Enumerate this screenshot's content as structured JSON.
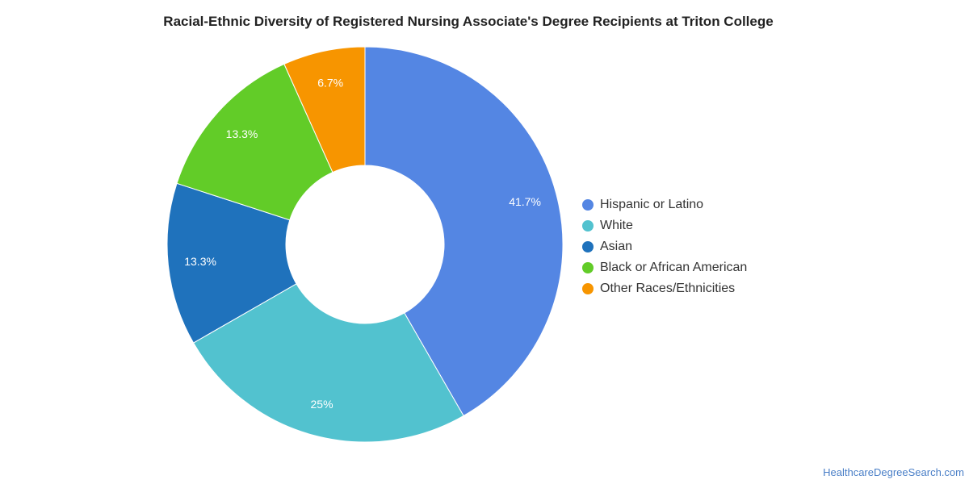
{
  "chart_data": {
    "type": "pie",
    "title": "Racial-Ethnic Diversity of Registered Nursing Associate's Degree Recipients at Triton College",
    "legend_position": "right",
    "donut": true,
    "slices": [
      {
        "name": "Hispanic or Latino",
        "value": 41.7,
        "label": "41.7%",
        "color": "#5486e3"
      },
      {
        "name": "White",
        "value": 25,
        "label": "25%",
        "color": "#52c2cf"
      },
      {
        "name": "Asian",
        "value": 13.3,
        "label": "13.3%",
        "color": "#1f72bc"
      },
      {
        "name": "Black or African American",
        "value": 13.3,
        "label": "13.3%",
        "color": "#62cc28"
      },
      {
        "name": "Other Races/Ethnicities",
        "value": 6.7,
        "label": "6.7%",
        "color": "#f79500"
      }
    ]
  },
  "footer": {
    "source": "HealthcareDegreeSearch.com"
  }
}
